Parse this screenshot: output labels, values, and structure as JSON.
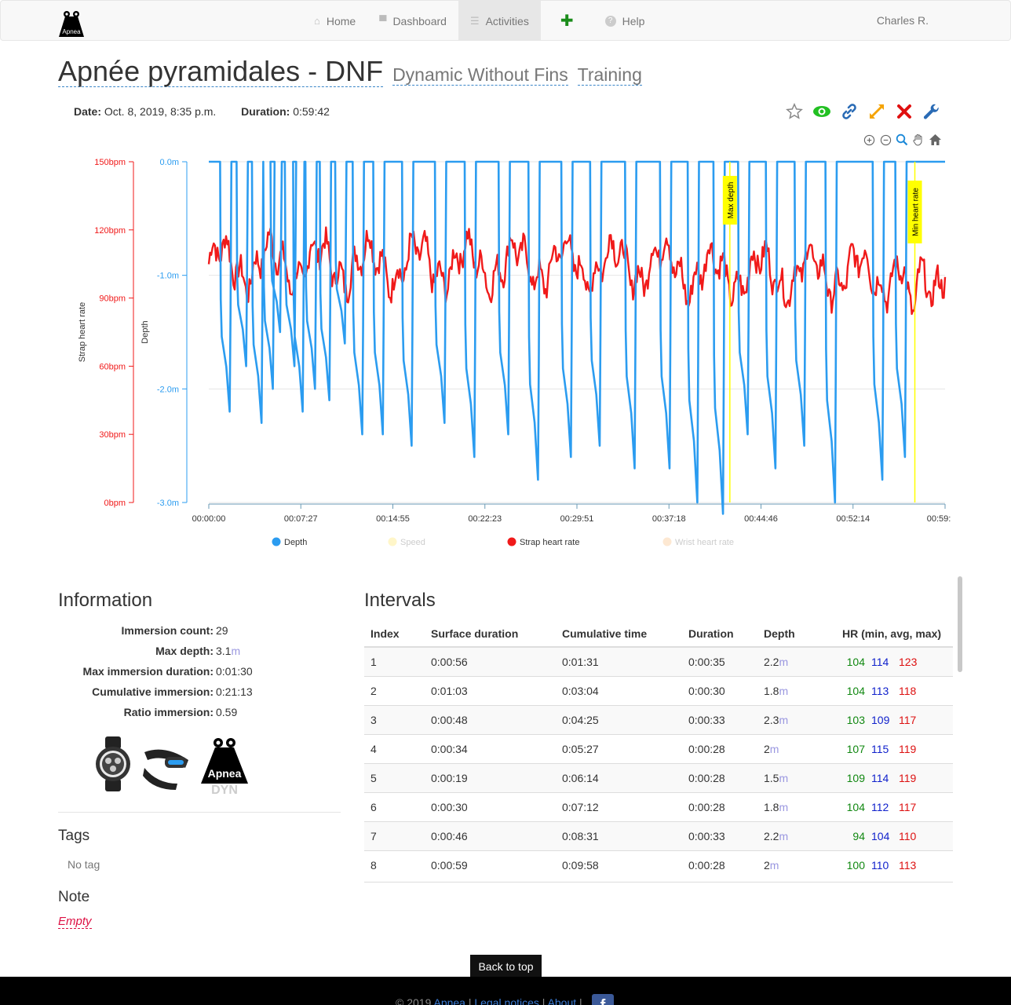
{
  "nav": {
    "brand_text": "Apnea",
    "items": [
      {
        "label": "Home",
        "icon": "home-icon",
        "glyph": "⌂"
      },
      {
        "label": "Dashboard",
        "icon": "dashboard-icon",
        "glyph": "▀"
      },
      {
        "label": "Activities",
        "icon": "list-icon",
        "glyph": "☰"
      },
      {
        "label": "",
        "icon": "plus-icon",
        "glyph": "✚"
      },
      {
        "label": "Help",
        "icon": "help-icon",
        "glyph": "?"
      }
    ],
    "user": "Charles R."
  },
  "activity": {
    "title": "Apnée pyramidales - DNF",
    "discipline": "Dynamic Without Fins",
    "type": "Training",
    "date_label": "Date:",
    "date": "Oct. 8, 2019, 8:35 p.m.",
    "duration_label": "Duration:",
    "duration": "0:59:42"
  },
  "colors": {
    "depth": "#2b9cf0",
    "heart_rate": "#f01a1a",
    "annotation": "#ffff00"
  },
  "chart_data": {
    "type": "line",
    "x_ticks": [
      "00:00:00",
      "00:07:27",
      "00:14:55",
      "00:22:23",
      "00:29:51",
      "00:37:18",
      "00:44:46",
      "00:52:14",
      "00:59:"
    ],
    "x_range_seconds": [
      0,
      3582
    ],
    "y_left_outer": {
      "label": "Strap heart rate",
      "ticks": [
        "150bpm",
        "120bpm",
        "90bpm",
        "60bpm",
        "30bpm",
        "0bpm"
      ],
      "range": [
        0,
        150
      ]
    },
    "y_left_inner": {
      "label": "Depth",
      "ticks": [
        "0.0m",
        "-1.0m",
        "-2.0m",
        "-3.0m"
      ],
      "range": [
        -3.0,
        0.0
      ]
    },
    "series": [
      {
        "name": "Depth",
        "color": "#2b9cf0",
        "active": true,
        "dive_starts_s": [
          55,
          135,
          210,
          265,
          300,
          370,
          410,
          470,
          540,
          615,
          700,
          800,
          940,
          1100,
          1245,
          1410,
          1555,
          1715,
          1855,
          2025,
          2195,
          2330,
          2455,
          2575,
          2710,
          2850,
          3000,
          3230,
          3340
        ],
        "max_depths_m": [
          2.2,
          1.8,
          2.3,
          2.0,
          1.5,
          1.8,
          2.2,
          2.0,
          2.1,
          1.6,
          2.4,
          2.4,
          2.5,
          2.3,
          2.6,
          2.4,
          2.8,
          2.6,
          2.5,
          2.7,
          2.7,
          3.0,
          3.1,
          2.4,
          2.7,
          2.5,
          3.0,
          2.8,
          2.6
        ]
      },
      {
        "name": "Speed",
        "color": "#fff6c9",
        "active": false
      },
      {
        "name": "Strap heart rate",
        "color": "#f01a1a",
        "active": true,
        "min": 70,
        "max": 123,
        "typical": 105
      },
      {
        "name": "Wrist heart rate",
        "color": "#fde8d2",
        "active": false
      }
    ],
    "annotations": [
      {
        "label": "Max depth",
        "x_s": 2535
      },
      {
        "label": "Min heart rate",
        "x_s": 3435
      }
    ],
    "legend_position": "bottom"
  },
  "information": {
    "title": "Information",
    "rows": [
      {
        "k": "Immersion count:",
        "v": "29",
        "u": ""
      },
      {
        "k": "Max depth:",
        "v": "3.1",
        "u": "m"
      },
      {
        "k": "Max immersion duration:",
        "v": "0:01:30",
        "u": ""
      },
      {
        "k": "Cumulative immersion:",
        "v": "0:21:13",
        "u": ""
      },
      {
        "k": "Ratio immersion:",
        "v": "0.59",
        "u": ""
      }
    ],
    "device_badge": "DYN"
  },
  "tags": {
    "title": "Tags",
    "empty": "No tag"
  },
  "note": {
    "title": "Note",
    "empty": "Empty"
  },
  "intervals": {
    "title": "Intervals",
    "headers": [
      "Index",
      "Surface duration",
      "Cumulative time",
      "Duration",
      "Depth",
      "HR (min, avg, max)"
    ],
    "rows": [
      {
        "i": "1",
        "surface": "0:00:56",
        "cum": "0:01:31",
        "dur": "0:00:35",
        "depth": "2.2",
        "min": "104",
        "avg": "114",
        "max": "123"
      },
      {
        "i": "2",
        "surface": "0:01:03",
        "cum": "0:03:04",
        "dur": "0:00:30",
        "depth": "1.8",
        "min": "104",
        "avg": "113",
        "max": "118"
      },
      {
        "i": "3",
        "surface": "0:00:48",
        "cum": "0:04:25",
        "dur": "0:00:33",
        "depth": "2.3",
        "min": "103",
        "avg": "109",
        "max": "117"
      },
      {
        "i": "4",
        "surface": "0:00:34",
        "cum": "0:05:27",
        "dur": "0:00:28",
        "depth": "2",
        "min": "107",
        "avg": "115",
        "max": "119"
      },
      {
        "i": "5",
        "surface": "0:00:19",
        "cum": "0:06:14",
        "dur": "0:00:28",
        "depth": "1.5",
        "min": "109",
        "avg": "114",
        "max": "119"
      },
      {
        "i": "6",
        "surface": "0:00:30",
        "cum": "0:07:12",
        "dur": "0:00:28",
        "depth": "1.8",
        "min": "104",
        "avg": "112",
        "max": "117"
      },
      {
        "i": "7",
        "surface": "0:00:46",
        "cum": "0:08:31",
        "dur": "0:00:33",
        "depth": "2.2",
        "min": "94",
        "avg": "104",
        "max": "110"
      },
      {
        "i": "8",
        "surface": "0:00:59",
        "cum": "0:09:58",
        "dur": "0:00:28",
        "depth": "2",
        "min": "100",
        "avg": "110",
        "max": "113"
      }
    ],
    "depth_unit": "m"
  },
  "back_to_top": "Back to top",
  "footer": {
    "copyright": "© 2019",
    "brand": "Apnea",
    "sep": "|",
    "legal": "Legal notices",
    "about": "About",
    "fb": "f"
  }
}
